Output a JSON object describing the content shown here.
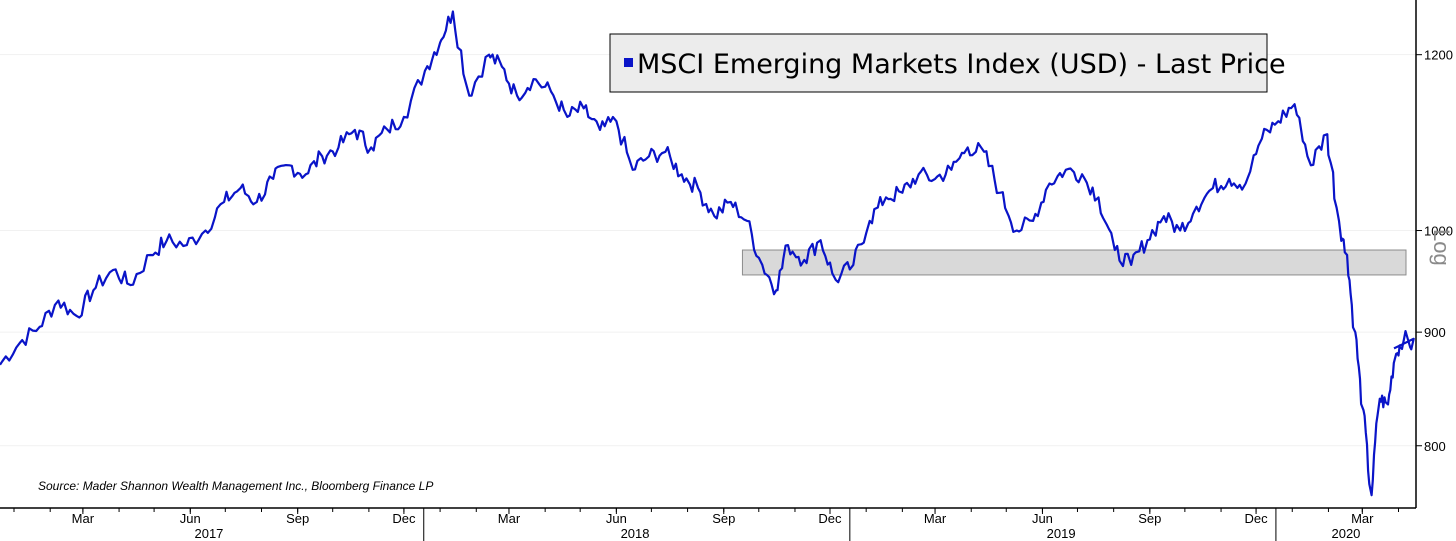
{
  "chart_data": {
    "type": "line",
    "y_scale": "log",
    "y_scale_label": "Log",
    "ylim": [
      750,
      1270
    ],
    "y_ticks": [
      "800",
      "900",
      "1000",
      "1200"
    ],
    "y_tick_values": [
      800,
      900,
      1000,
      1200
    ],
    "xlim": [
      "2017-01-03",
      "2020-04-30"
    ],
    "month_ticks": [
      {
        "label": "Mar",
        "date": "2017-03-15"
      },
      {
        "label": "Jun",
        "date": "2017-06-15"
      },
      {
        "label": "Sep",
        "date": "2017-09-15"
      },
      {
        "label": "Dec",
        "date": "2017-12-15"
      },
      {
        "label": "Mar",
        "date": "2018-03-15"
      },
      {
        "label": "Jun",
        "date": "2018-06-15"
      },
      {
        "label": "Sep",
        "date": "2018-09-15"
      },
      {
        "label": "Dec",
        "date": "2018-12-15"
      },
      {
        "label": "Mar",
        "date": "2019-03-15"
      },
      {
        "label": "Jun",
        "date": "2019-06-15"
      },
      {
        "label": "Sep",
        "date": "2019-09-15"
      },
      {
        "label": "Dec",
        "date": "2019-12-15"
      },
      {
        "label": "Mar",
        "date": "2020-03-15"
      }
    ],
    "year_ticks": [
      {
        "label": "2017",
        "date": "2017-07-01"
      },
      {
        "label": "2018",
        "date": "2018-07-01"
      },
      {
        "label": "2019",
        "date": "2019-07-01"
      },
      {
        "label": "2020",
        "date": "2020-03-01"
      }
    ],
    "series": [
      {
        "name": "MSCI Emerging Markets Index (USD) - Last Price",
        "color": "#0a14c8",
        "points": [
          [
            "2017-01-03",
            870
          ],
          [
            "2017-01-20",
            890
          ],
          [
            "2017-02-06",
            905
          ],
          [
            "2017-02-22",
            930
          ],
          [
            "2017-03-10",
            915
          ],
          [
            "2017-03-24",
            940
          ],
          [
            "2017-04-10",
            960
          ],
          [
            "2017-04-25",
            945
          ],
          [
            "2017-05-12",
            975
          ],
          [
            "2017-05-26",
            990
          ],
          [
            "2017-06-12",
            985
          ],
          [
            "2017-06-28",
            1000
          ],
          [
            "2017-07-14",
            1030
          ],
          [
            "2017-07-28",
            1045
          ],
          [
            "2017-08-11",
            1030
          ],
          [
            "2017-08-25",
            1055
          ],
          [
            "2017-09-08",
            1070
          ],
          [
            "2017-09-22",
            1060
          ],
          [
            "2017-10-06",
            1080
          ],
          [
            "2017-10-20",
            1090
          ],
          [
            "2017-11-03",
            1110
          ],
          [
            "2017-11-17",
            1090
          ],
          [
            "2017-12-01",
            1110
          ],
          [
            "2017-12-15",
            1125
          ],
          [
            "2018-01-02",
            1180
          ],
          [
            "2018-01-15",
            1215
          ],
          [
            "2018-01-26",
            1255
          ],
          [
            "2018-02-09",
            1150
          ],
          [
            "2018-02-26",
            1200
          ],
          [
            "2018-03-09",
            1185
          ],
          [
            "2018-03-22",
            1150
          ],
          [
            "2018-04-05",
            1170
          ],
          [
            "2018-04-20",
            1155
          ],
          [
            "2018-05-04",
            1125
          ],
          [
            "2018-05-18",
            1135
          ],
          [
            "2018-06-01",
            1110
          ],
          [
            "2018-06-15",
            1120
          ],
          [
            "2018-06-29",
            1065
          ],
          [
            "2018-07-13",
            1080
          ],
          [
            "2018-07-27",
            1085
          ],
          [
            "2018-08-10",
            1060
          ],
          [
            "2018-08-24",
            1045
          ],
          [
            "2018-09-07",
            1015
          ],
          [
            "2018-09-21",
            1030
          ],
          [
            "2018-10-05",
            1010
          ],
          [
            "2018-10-18",
            965
          ],
          [
            "2018-10-30",
            940
          ],
          [
            "2018-11-09",
            985
          ],
          [
            "2018-11-23",
            970
          ],
          [
            "2018-12-07",
            990
          ],
          [
            "2018-12-20",
            950
          ],
          [
            "2019-01-04",
            965
          ],
          [
            "2019-01-18",
            1010
          ],
          [
            "2019-02-01",
            1035
          ],
          [
            "2019-02-15",
            1040
          ],
          [
            "2019-03-01",
            1060
          ],
          [
            "2019-03-15",
            1055
          ],
          [
            "2019-03-29",
            1065
          ],
          [
            "2019-04-12",
            1090
          ],
          [
            "2019-04-26",
            1085
          ],
          [
            "2019-05-10",
            1040
          ],
          [
            "2019-05-24",
            1000
          ],
          [
            "2019-06-07",
            1010
          ],
          [
            "2019-06-21",
            1050
          ],
          [
            "2019-07-05",
            1065
          ],
          [
            "2019-07-19",
            1060
          ],
          [
            "2019-08-02",
            1035
          ],
          [
            "2019-08-16",
            980
          ],
          [
            "2019-08-30",
            965
          ],
          [
            "2019-09-13",
            990
          ],
          [
            "2019-09-27",
            1015
          ],
          [
            "2019-10-11",
            1000
          ],
          [
            "2019-10-25",
            1025
          ],
          [
            "2019-11-08",
            1045
          ],
          [
            "2019-11-22",
            1055
          ],
          [
            "2019-12-06",
            1050
          ],
          [
            "2019-12-20",
            1100
          ],
          [
            "2020-01-03",
            1120
          ],
          [
            "2020-01-17",
            1140
          ],
          [
            "2020-01-31",
            1070
          ],
          [
            "2020-02-14",
            1105
          ],
          [
            "2020-02-24",
            1010
          ],
          [
            "2020-03-02",
            975
          ],
          [
            "2020-03-09",
            900
          ],
          [
            "2020-03-16",
            830
          ],
          [
            "2020-03-23",
            760
          ],
          [
            "2020-03-30",
            840
          ],
          [
            "2020-04-06",
            835
          ],
          [
            "2020-04-13",
            880
          ],
          [
            "2020-04-20",
            895
          ],
          [
            "2020-04-30",
            885
          ]
        ]
      }
    ],
    "shaded_band": {
      "y_range": [
        955,
        980
      ],
      "x_range": [
        "2018-10-01",
        "2020-04-30"
      ]
    },
    "source": "Source: Mader Shannon Wealth Management Inc., Bloomberg Finance LP"
  }
}
